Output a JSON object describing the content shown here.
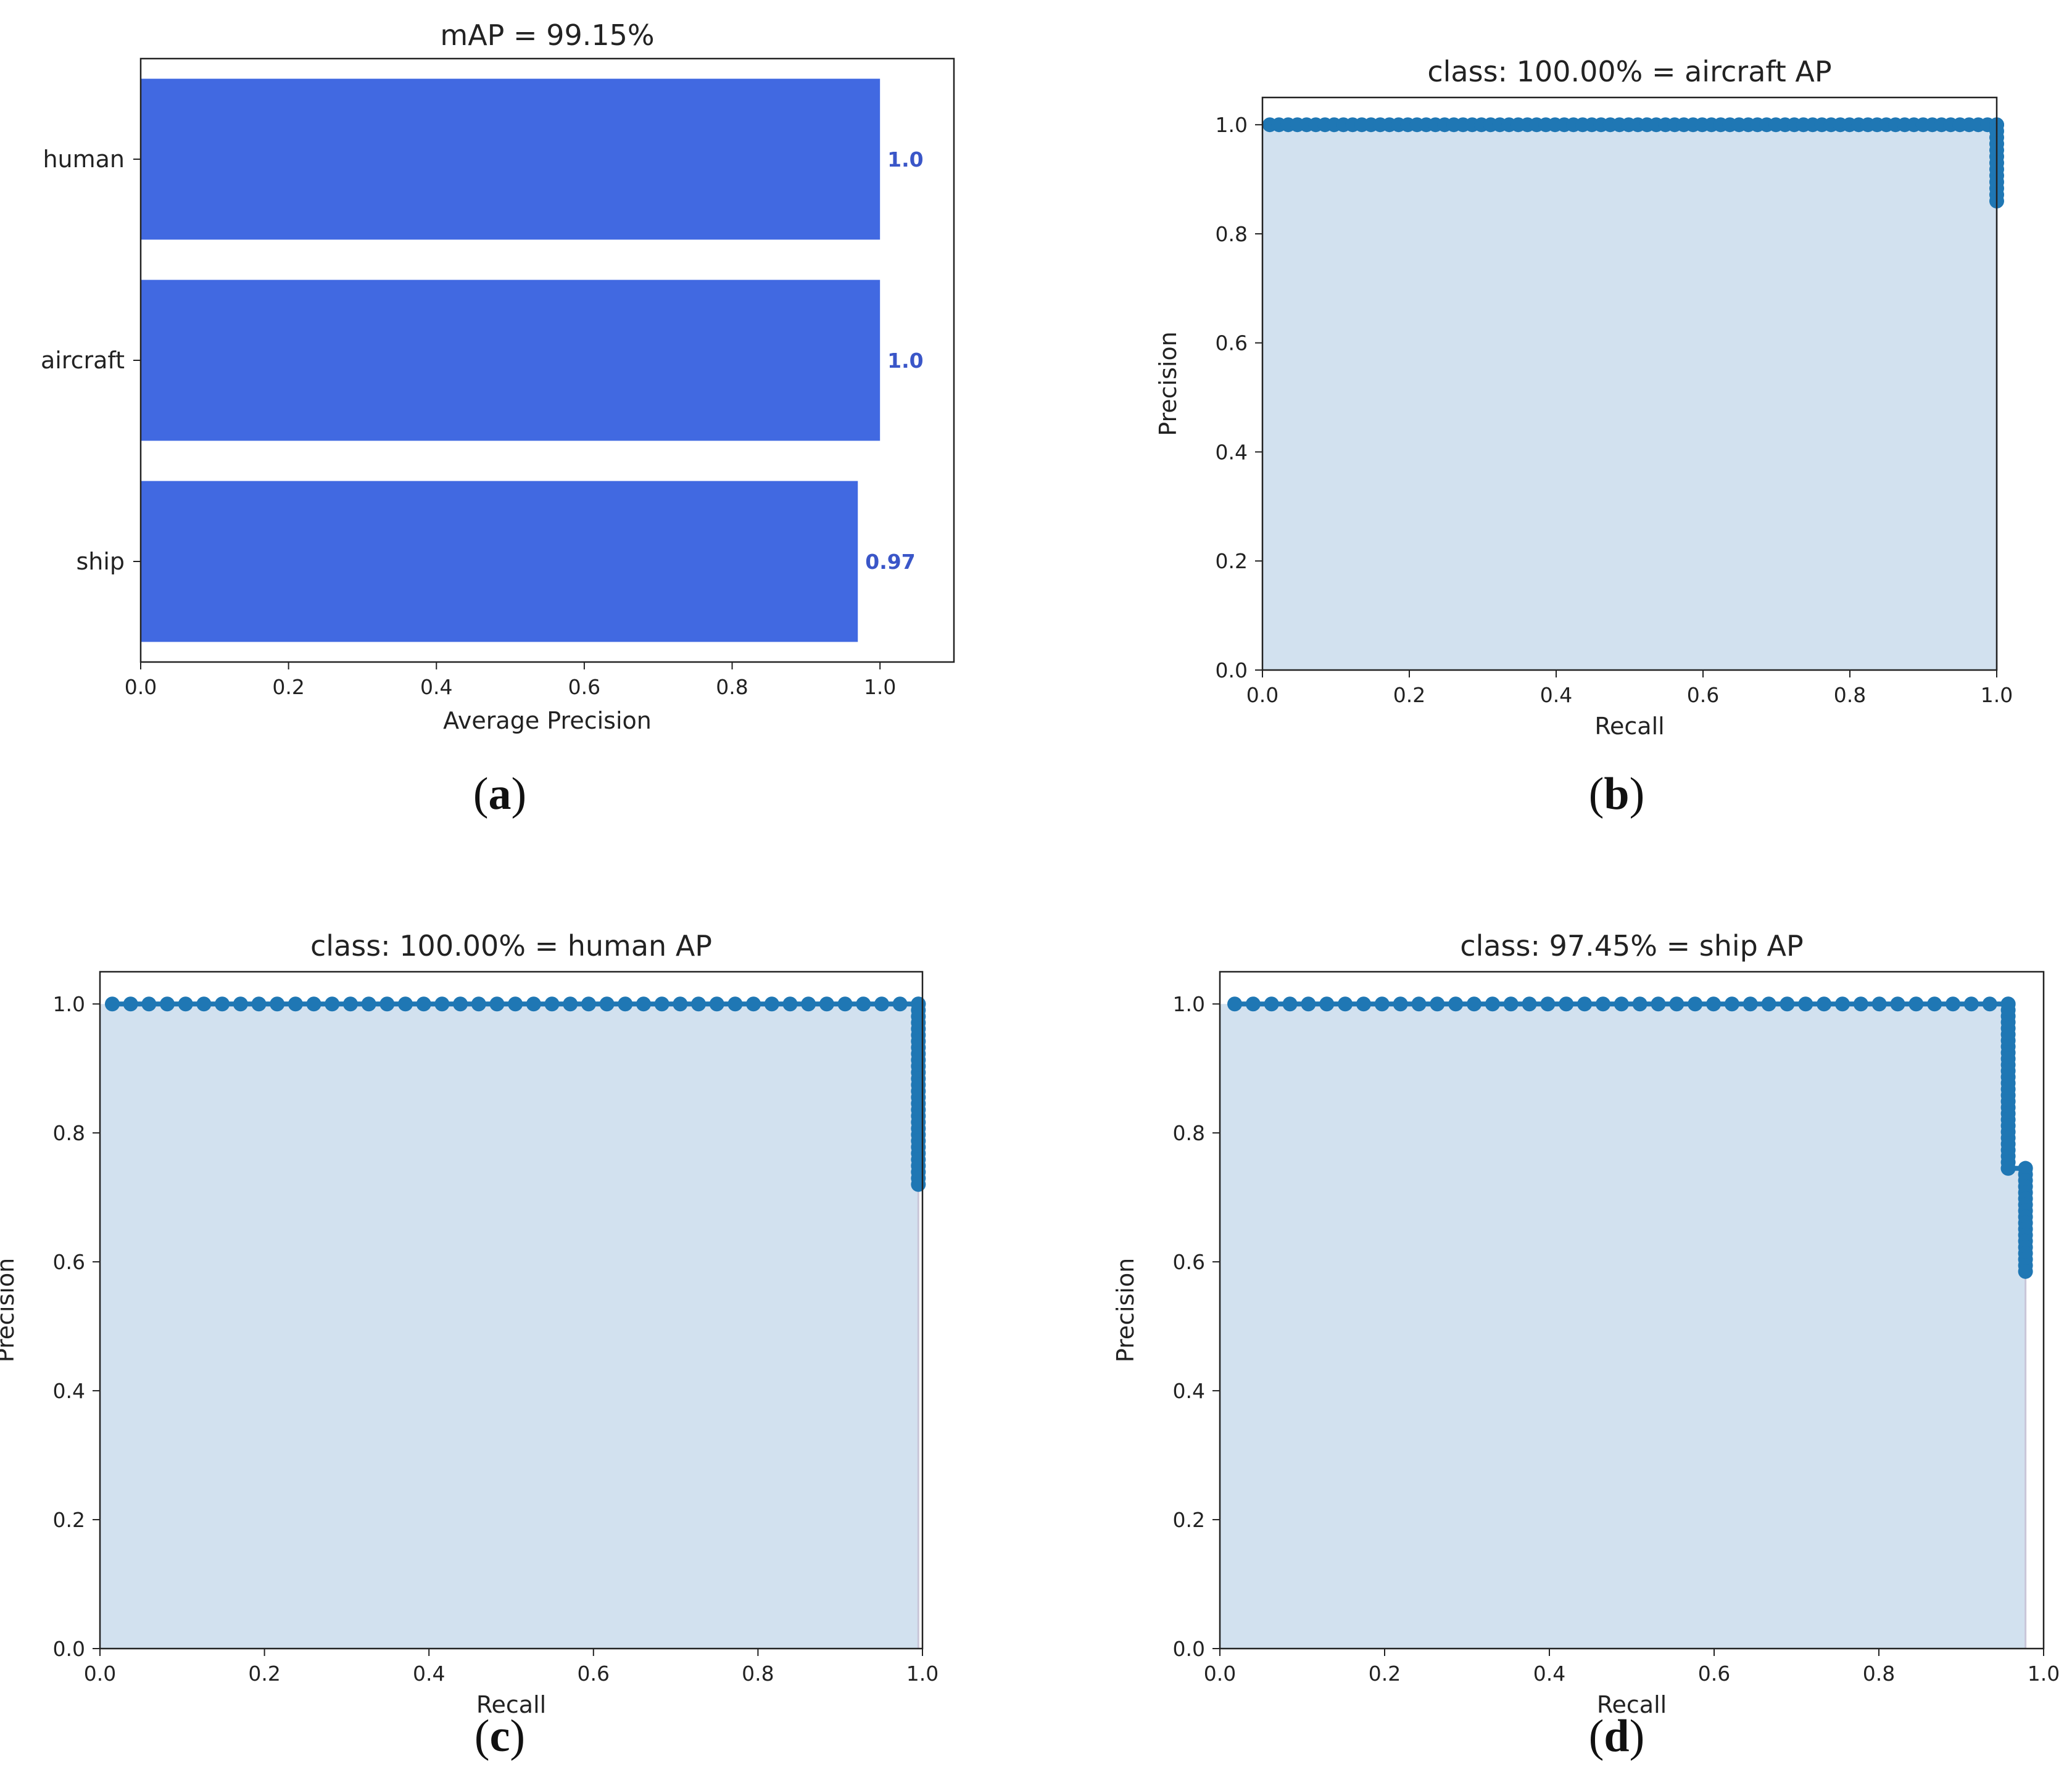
{
  "colors": {
    "bar": "#4169e1",
    "bar_label": "#3a56c8",
    "pr_fill": "#d2e1ef",
    "pr_marker": "#1f77b4",
    "pr_edge": "#2a7ab5"
  },
  "captions": {
    "a": "a",
    "b": "b",
    "c": "c",
    "d": "d"
  },
  "chart_data": [
    {
      "id": "a",
      "type": "bar",
      "orientation": "horizontal",
      "title": "mAP = 99.15%",
      "categories": [
        "human",
        "aircraft",
        "ship"
      ],
      "values": [
        1.0,
        1.0,
        0.97
      ],
      "value_labels": [
        "1.0",
        "1.0",
        "0.97"
      ],
      "xlabel": "Average Precision",
      "ylabel": "",
      "xlim": [
        0,
        1.1
      ],
      "xticks": [
        "0.0",
        "0.2",
        "0.4",
        "0.6",
        "0.8",
        "1.0"
      ]
    },
    {
      "id": "b",
      "type": "area",
      "title": "class: 100.00% = aircraft AP",
      "xlabel": "Recall",
      "ylabel": "Precision",
      "xlim": [
        0,
        1.0
      ],
      "ylim": [
        0,
        1.05
      ],
      "xticks": [
        "0.0",
        "0.2",
        "0.4",
        "0.6",
        "0.8",
        "1.0"
      ],
      "yticks": [
        "0.0",
        "0.2",
        "0.4",
        "0.6",
        "0.8",
        "1.0"
      ],
      "recall": [
        0.01,
        1.0,
        1.0
      ],
      "precision": [
        1.0,
        1.0,
        0.86
      ],
      "marker_spacing": 0.0125
    },
    {
      "id": "c",
      "type": "area",
      "title": "class: 100.00% = human AP",
      "xlabel": "Recall",
      "ylabel": "Precision",
      "xlim": [
        0,
        1.0
      ],
      "ylim": [
        0,
        1.05
      ],
      "xticks": [
        "0.0",
        "0.2",
        "0.4",
        "0.6",
        "0.8",
        "1.0"
      ],
      "yticks": [
        "0.0",
        "0.2",
        "0.4",
        "0.6",
        "0.8",
        "1.0"
      ],
      "recall": [
        0.015,
        0.995,
        0.995
      ],
      "precision": [
        1.0,
        1.0,
        0.72
      ],
      "marker_spacing": 0.0225
    },
    {
      "id": "d",
      "type": "area",
      "title": "class: 97.45% = ship AP",
      "xlabel": "Recall",
      "ylabel": "Precision",
      "xlim": [
        0,
        1.0
      ],
      "ylim": [
        0,
        1.05
      ],
      "xticks": [
        "0.0",
        "0.2",
        "0.4",
        "0.6",
        "0.8",
        "1.0"
      ],
      "yticks": [
        "0.0",
        "0.2",
        "0.4",
        "0.6",
        "0.8",
        "1.0"
      ],
      "recall": [
        0.018,
        0.957,
        0.957,
        0.978,
        0.978
      ],
      "precision": [
        1.0,
        1.0,
        0.745,
        0.745,
        0.585
      ],
      "marker_spacing": 0.0225
    }
  ]
}
